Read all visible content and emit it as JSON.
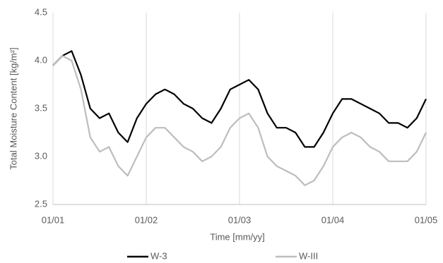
{
  "chart_data": {
    "type": "line",
    "xlabel": "Time [mm/yy]",
    "ylabel": "Total Moisture Content [kg/m²]",
    "x": [
      0,
      0.1,
      0.2,
      0.3,
      0.4,
      0.5,
      0.6,
      0.7,
      0.8,
      0.9,
      1,
      1.1,
      1.2,
      1.3,
      1.4,
      1.5,
      1.6,
      1.7,
      1.8,
      1.9,
      2,
      2.1,
      2.2,
      2.3,
      2.4,
      2.5,
      2.6,
      2.7,
      2.8,
      2.9,
      3,
      3.1,
      3.2,
      3.3,
      3.4,
      3.5,
      3.6,
      3.7,
      3.8,
      3.9,
      4
    ],
    "series": [
      {
        "name": "W-3",
        "color": "#000000",
        "width": 2.2,
        "values": [
          3.95,
          4.05,
          4.1,
          3.85,
          3.5,
          3.4,
          3.45,
          3.25,
          3.15,
          3.4,
          3.55,
          3.65,
          3.7,
          3.65,
          3.55,
          3.5,
          3.4,
          3.35,
          3.5,
          3.7,
          3.75,
          3.8,
          3.7,
          3.45,
          3.3,
          3.3,
          3.25,
          3.1,
          3.1,
          3.25,
          3.45,
          3.6,
          3.6,
          3.55,
          3.5,
          3.45,
          3.35,
          3.35,
          3.3,
          3.4,
          3.6
        ]
      },
      {
        "name": "W-III",
        "color": "#bdbdbd",
        "width": 2.2,
        "values": [
          3.95,
          4.05,
          4.0,
          3.7,
          3.2,
          3.05,
          3.1,
          2.9,
          2.8,
          3.0,
          3.2,
          3.3,
          3.3,
          3.2,
          3.1,
          3.05,
          2.95,
          3.0,
          3.1,
          3.3,
          3.4,
          3.45,
          3.3,
          3.0,
          2.9,
          2.85,
          2.8,
          2.7,
          2.75,
          2.9,
          3.1,
          3.2,
          3.25,
          3.2,
          3.1,
          3.05,
          2.95,
          2.95,
          2.95,
          3.05,
          3.25
        ]
      }
    ],
    "xlim": [
      0,
      4
    ],
    "xticks": [
      {
        "value": 0,
        "label": "01/01"
      },
      {
        "value": 1,
        "label": "01/02"
      },
      {
        "value": 2,
        "label": "01/03"
      },
      {
        "value": 3,
        "label": "01/04"
      },
      {
        "value": 4,
        "label": "01/05"
      }
    ],
    "ylim": [
      2.5,
      4.5
    ],
    "yticks": [
      2.5,
      {
        "value": 3,
        "label": "3.0"
      },
      3.5,
      {
        "value": 4,
        "label": "4.0"
      },
      4.5
    ],
    "grid": "x",
    "legend": "bottom"
  }
}
